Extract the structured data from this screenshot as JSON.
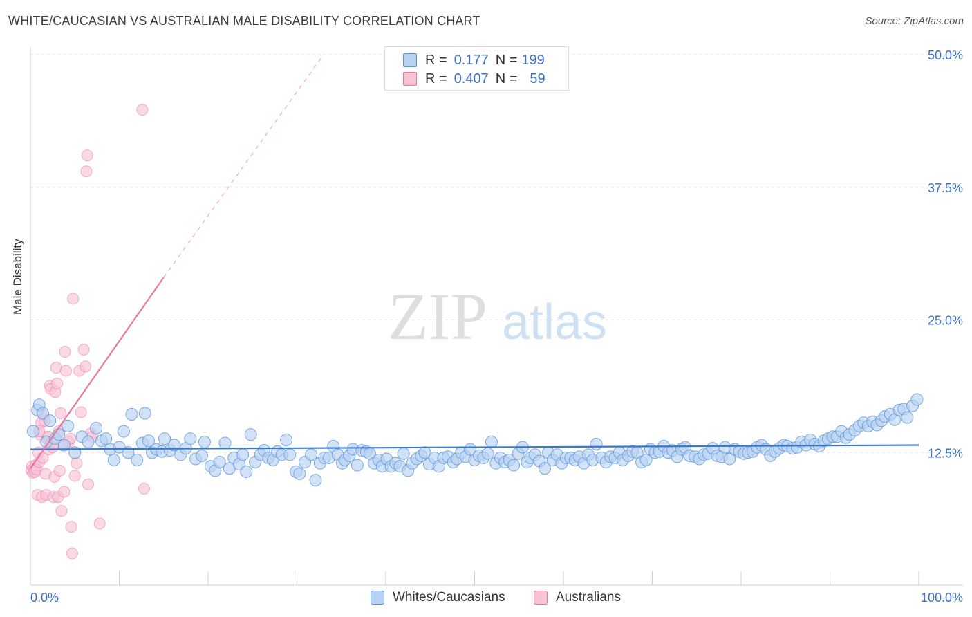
{
  "title": "WHITE/CAUCASIAN VS AUSTRALIAN MALE DISABILITY CORRELATION CHART",
  "source": "Source: ZipAtlas.com",
  "watermark": {
    "zip": "ZIP",
    "atlas": "atlas"
  },
  "legend": {
    "rows": [
      {
        "r_label": "R =",
        "r_value": "0.177",
        "n_label": "N =",
        "n_value": "199",
        "color": "#a8c8f0"
      },
      {
        "r_label": "R =",
        "r_value": "0.407",
        "n_label": "N =",
        "n_value": "59",
        "color": "#f6b8cd"
      }
    ]
  },
  "bottom_legend": {
    "series1": "Whites/Caucasians",
    "series2": "Australians"
  },
  "axis": {
    "y_title": "Male Disability",
    "x_left": "0.0%",
    "x_right": "100.0%",
    "y_ticks": [
      "12.5%",
      "25.0%",
      "37.5%",
      "50.0%"
    ]
  },
  "chart_data": {
    "type": "scatter",
    "xlabel": "",
    "ylabel": "Male Disability",
    "xlim": [
      0,
      100
    ],
    "ylim": [
      0,
      50
    ],
    "y_tick_values": [
      12.5,
      25.0,
      37.5,
      50.0
    ],
    "grid": "dashed horizontal",
    "colors": {
      "whites": "#5b93d8",
      "whites_fill": "#b8d2f2",
      "australians": "#e8769e",
      "australians_fill": "#f7c3d5",
      "tick_label": "#3a6fc4"
    },
    "series": [
      {
        "name": "Whites/Caucasians",
        "trend": {
          "x": [
            0,
            100
          ],
          "y": [
            12.8,
            13.2
          ]
        },
        "points": [
          [
            0.3,
            14.5
          ],
          [
            0.8,
            16.5
          ],
          [
            1.0,
            17.0
          ],
          [
            1.4,
            16.2
          ],
          [
            1.8,
            13.5
          ],
          [
            2.2,
            15.5
          ],
          [
            2.8,
            13.8
          ],
          [
            3.2,
            14.2
          ],
          [
            3.8,
            13.2
          ],
          [
            4.2,
            15.0
          ],
          [
            5.0,
            12.5
          ],
          [
            5.8,
            14.0
          ],
          [
            6.5,
            13.5
          ],
          [
            7.4,
            14.8
          ],
          [
            8.0,
            13.6
          ],
          [
            8.5,
            13.8
          ],
          [
            9.0,
            12.8
          ],
          [
            9.4,
            11.8
          ],
          [
            10.0,
            13.0
          ],
          [
            10.5,
            14.5
          ],
          [
            11.0,
            12.5
          ],
          [
            11.4,
            16.1
          ],
          [
            12.0,
            11.8
          ],
          [
            12.6,
            13.4
          ],
          [
            12.9,
            16.2
          ],
          [
            13.3,
            13.6
          ],
          [
            13.7,
            12.5
          ],
          [
            14.2,
            12.8
          ],
          [
            14.8,
            12.6
          ],
          [
            15.1,
            13.8
          ],
          [
            15.7,
            12.7
          ],
          [
            16.2,
            13.2
          ],
          [
            16.9,
            12.3
          ],
          [
            17.5,
            12.9
          ],
          [
            18.0,
            13.8
          ],
          [
            18.6,
            11.9
          ],
          [
            19.3,
            12.2
          ],
          [
            19.6,
            13.5
          ],
          [
            20.3,
            11.2
          ],
          [
            20.8,
            10.8
          ],
          [
            21.3,
            11.6
          ],
          [
            21.9,
            13.4
          ],
          [
            22.4,
            11.0
          ],
          [
            22.9,
            12.0
          ],
          [
            23.5,
            11.4
          ],
          [
            23.9,
            12.3
          ],
          [
            24.3,
            10.7
          ],
          [
            24.8,
            14.2
          ],
          [
            25.3,
            11.6
          ],
          [
            25.9,
            12.3
          ],
          [
            26.3,
            12.7
          ],
          [
            26.8,
            12.0
          ],
          [
            27.3,
            11.8
          ],
          [
            27.8,
            12.6
          ],
          [
            28.3,
            12.3
          ],
          [
            28.8,
            13.7
          ],
          [
            29.2,
            12.3
          ],
          [
            29.9,
            10.7
          ],
          [
            30.3,
            10.5
          ],
          [
            30.9,
            11.6
          ],
          [
            31.6,
            12.3
          ],
          [
            32.1,
            9.9
          ],
          [
            32.6,
            11.5
          ],
          [
            33.1,
            12.0
          ],
          [
            33.6,
            12.0
          ],
          [
            34.1,
            13.1
          ],
          [
            34.6,
            12.3
          ],
          [
            35.1,
            11.5
          ],
          [
            35.4,
            11.8
          ],
          [
            35.9,
            12.2
          ],
          [
            36.3,
            12.8
          ],
          [
            36.8,
            11.3
          ],
          [
            37.3,
            12.7
          ],
          [
            37.8,
            12.6
          ],
          [
            38.2,
            12.4
          ],
          [
            38.7,
            11.5
          ],
          [
            39.2,
            11.8
          ],
          [
            39.6,
            11.2
          ],
          [
            40.1,
            11.9
          ],
          [
            40.6,
            11.2
          ],
          [
            41.1,
            11.5
          ],
          [
            41.6,
            11.2
          ],
          [
            42.0,
            12.4
          ],
          [
            42.5,
            10.8
          ],
          [
            43.0,
            11.5
          ],
          [
            43.5,
            11.9
          ],
          [
            44.0,
            12.2
          ],
          [
            44.4,
            12.5
          ],
          [
            44.9,
            11.4
          ],
          [
            45.5,
            12.0
          ],
          [
            46.0,
            11.2
          ],
          [
            46.5,
            12.0
          ],
          [
            47.0,
            12.1
          ],
          [
            47.6,
            11.6
          ],
          [
            48.0,
            11.9
          ],
          [
            48.5,
            12.5
          ],
          [
            49.0,
            12.1
          ],
          [
            49.5,
            12.8
          ],
          [
            50.0,
            11.8
          ],
          [
            50.5,
            12.2
          ],
          [
            51.0,
            12.0
          ],
          [
            51.5,
            12.4
          ],
          [
            51.9,
            13.5
          ],
          [
            52.4,
            11.5
          ],
          [
            52.9,
            12.0
          ],
          [
            53.4,
            11.6
          ],
          [
            53.9,
            11.8
          ],
          [
            54.4,
            11.3
          ],
          [
            54.9,
            12.4
          ],
          [
            55.4,
            13.0
          ],
          [
            55.9,
            11.6
          ],
          [
            56.3,
            12.0
          ],
          [
            56.8,
            12.3
          ],
          [
            57.3,
            11.7
          ],
          [
            57.9,
            11.0
          ],
          [
            58.3,
            12.5
          ],
          [
            58.8,
            11.8
          ],
          [
            59.3,
            12.3
          ],
          [
            59.8,
            11.5
          ],
          [
            60.3,
            12.0
          ],
          [
            60.8,
            12.0
          ],
          [
            61.3,
            11.8
          ],
          [
            61.8,
            12.1
          ],
          [
            62.3,
            11.5
          ],
          [
            62.8,
            12.3
          ],
          [
            63.3,
            11.8
          ],
          [
            63.7,
            13.3
          ],
          [
            64.3,
            12.0
          ],
          [
            64.8,
            11.6
          ],
          [
            65.3,
            12.1
          ],
          [
            65.8,
            12.0
          ],
          [
            66.3,
            12.5
          ],
          [
            66.7,
            11.8
          ],
          [
            67.3,
            12.2
          ],
          [
            67.8,
            12.6
          ],
          [
            68.3,
            12.5
          ],
          [
            68.8,
            11.6
          ],
          [
            69.3,
            11.8
          ],
          [
            69.8,
            12.8
          ],
          [
            70.3,
            12.5
          ],
          [
            70.8,
            12.6
          ],
          [
            71.3,
            13.1
          ],
          [
            71.8,
            12.5
          ],
          [
            72.3,
            12.7
          ],
          [
            72.8,
            12.1
          ],
          [
            73.3,
            12.8
          ],
          [
            73.7,
            13.0
          ],
          [
            74.2,
            12.2
          ],
          [
            74.8,
            12.1
          ],
          [
            75.3,
            11.9
          ],
          [
            75.8,
            12.3
          ],
          [
            76.3,
            12.4
          ],
          [
            76.8,
            12.9
          ],
          [
            77.3,
            12.2
          ],
          [
            77.8,
            12.1
          ],
          [
            78.2,
            13.0
          ],
          [
            78.7,
            11.9
          ],
          [
            79.3,
            12.8
          ],
          [
            79.8,
            12.6
          ],
          [
            80.3,
            12.4
          ],
          [
            80.8,
            12.5
          ],
          [
            81.3,
            12.6
          ],
          [
            81.8,
            13.0
          ],
          [
            82.3,
            13.2
          ],
          [
            82.8,
            12.8
          ],
          [
            83.3,
            12.2
          ],
          [
            83.8,
            12.6
          ],
          [
            84.3,
            12.9
          ],
          [
            84.8,
            13.2
          ],
          [
            85.2,
            13.1
          ],
          [
            85.8,
            12.9
          ],
          [
            86.3,
            13.0
          ],
          [
            86.8,
            13.5
          ],
          [
            87.3,
            13.2
          ],
          [
            87.8,
            13.7
          ],
          [
            88.3,
            13.3
          ],
          [
            88.8,
            13.1
          ],
          [
            89.3,
            13.6
          ],
          [
            89.8,
            13.8
          ],
          [
            90.3,
            14.0
          ],
          [
            90.8,
            14.0
          ],
          [
            91.3,
            14.5
          ],
          [
            91.8,
            13.9
          ],
          [
            92.2,
            14.2
          ],
          [
            92.8,
            14.6
          ],
          [
            93.3,
            15.0
          ],
          [
            93.8,
            15.3
          ],
          [
            94.3,
            15.0
          ],
          [
            94.8,
            15.4
          ],
          [
            95.3,
            15.1
          ],
          [
            95.8,
            15.5
          ],
          [
            96.2,
            15.9
          ],
          [
            96.8,
            16.1
          ],
          [
            97.3,
            15.6
          ],
          [
            97.8,
            16.5
          ],
          [
            98.3,
            16.6
          ],
          [
            98.7,
            15.8
          ],
          [
            99.3,
            16.9
          ],
          [
            99.8,
            17.5
          ]
        ]
      },
      {
        "name": "Australians",
        "trend": {
          "x": [
            0,
            15
          ],
          "y": [
            11.0,
            29.0
          ],
          "extended": {
            "x": [
              15,
              33
            ],
            "y": [
              29.0,
              50.0
            ]
          }
        },
        "points": [
          [
            0.1,
            10.8
          ],
          [
            0.2,
            11.2
          ],
          [
            0.3,
            10.6
          ],
          [
            0.4,
            11.0
          ],
          [
            0.5,
            10.7
          ],
          [
            0.6,
            11.3
          ],
          [
            0.7,
            10.9
          ],
          [
            0.8,
            8.5
          ],
          [
            0.9,
            12.5
          ],
          [
            1.0,
            11.6
          ],
          [
            1.1,
            14.2
          ],
          [
            1.2,
            15.3
          ],
          [
            1.3,
            8.3
          ],
          [
            1.4,
            12.0
          ],
          [
            1.5,
            16.0
          ],
          [
            1.6,
            15.5
          ],
          [
            1.7,
            10.5
          ],
          [
            1.8,
            8.5
          ],
          [
            1.9,
            13.8
          ],
          [
            2.0,
            14.0
          ],
          [
            2.1,
            12.8
          ],
          [
            2.2,
            18.8
          ],
          [
            2.3,
            18.5
          ],
          [
            2.4,
            13.5
          ],
          [
            2.5,
            13.0
          ],
          [
            2.6,
            8.3
          ],
          [
            2.7,
            10.2
          ],
          [
            2.8,
            18.2
          ],
          [
            2.9,
            20.5
          ],
          [
            3.0,
            19.0
          ],
          [
            3.1,
            8.3
          ],
          [
            3.2,
            14.5
          ],
          [
            3.3,
            10.8
          ],
          [
            3.4,
            16.2
          ],
          [
            3.5,
            7.0
          ],
          [
            3.6,
            13.2
          ],
          [
            3.8,
            8.8
          ],
          [
            3.9,
            22.0
          ],
          [
            4.0,
            20.2
          ],
          [
            4.3,
            13.5
          ],
          [
            4.5,
            13.8
          ],
          [
            4.6,
            5.5
          ],
          [
            4.7,
            3.0
          ],
          [
            4.8,
            27.0
          ],
          [
            5.0,
            10.3
          ],
          [
            5.2,
            11.5
          ],
          [
            5.5,
            20.2
          ],
          [
            5.7,
            16.3
          ],
          [
            6.0,
            22.2
          ],
          [
            6.2,
            20.6
          ],
          [
            6.3,
            39.0
          ],
          [
            6.4,
            40.5
          ],
          [
            6.5,
            9.5
          ],
          [
            6.8,
            14.3
          ],
          [
            7.0,
            14.0
          ],
          [
            7.8,
            5.8
          ],
          [
            12.6,
            44.8
          ],
          [
            12.8,
            9.1
          ],
          [
            1.0,
            14.5
          ]
        ]
      }
    ]
  }
}
